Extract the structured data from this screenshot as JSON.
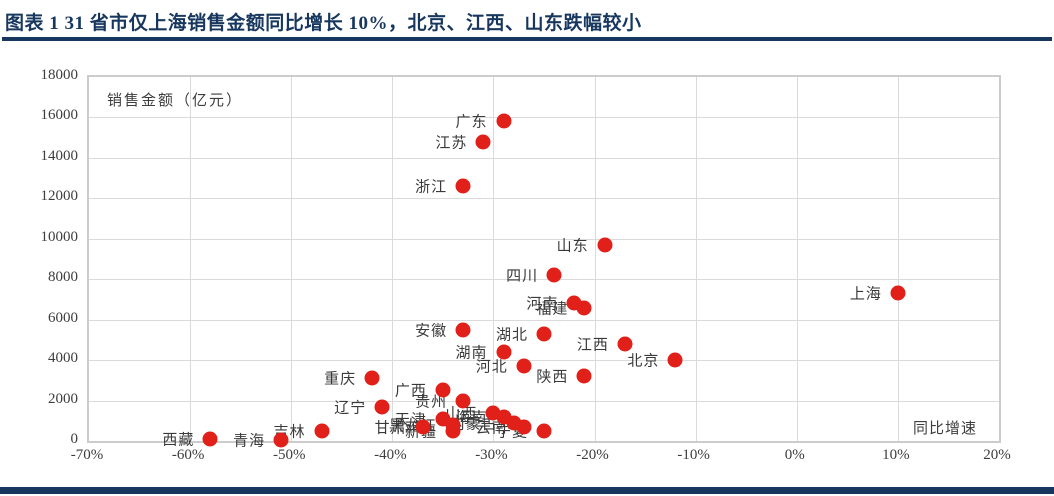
{
  "title": {
    "text": "图表 1  31 省市仅上海销售金额同比增长 10%，北京、江西、山东跌幅较小"
  },
  "colors": {
    "accent_navy": "#17375e",
    "point_red": "#e2201a",
    "grid_gray": "#dadada",
    "text_gray": "#3d3d3d"
  },
  "chart_data": {
    "type": "scatter",
    "title": "",
    "xlabel": "同比增速",
    "ylabel": "销售金额（亿元）",
    "xlim": [
      -70,
      20
    ],
    "ylim": [
      0,
      18000
    ],
    "grid": true,
    "x_tick_labels": [
      "-70%",
      "-60%",
      "-50%",
      "-40%",
      "-30%",
      "-20%",
      "-10%",
      "0%",
      "10%",
      "20%"
    ],
    "y_tick_labels": [
      "0",
      "2000",
      "4000",
      "6000",
      "8000",
      "10000",
      "12000",
      "14000",
      "16000",
      "18000"
    ],
    "x_unit": "percent_yoy_growth",
    "y_unit": "sales_amount_100M_yuan",
    "points": [
      {
        "name": "西藏",
        "x": -58,
        "y": 100
      },
      {
        "name": "青海",
        "x": -51,
        "y": 50
      },
      {
        "name": "吉林",
        "x": -47,
        "y": 500
      },
      {
        "name": "重庆",
        "x": -42,
        "y": 3100
      },
      {
        "name": "辽宁",
        "x": -41,
        "y": 1700
      },
      {
        "name": "甘肃",
        "x": -37,
        "y": 700
      },
      {
        "name": "广西",
        "x": -35,
        "y": 2500
      },
      {
        "name": "天津",
        "x": -35,
        "y": 1100
      },
      {
        "name": "黑龙江",
        "x": -34,
        "y": 800
      },
      {
        "name": "新疆",
        "x": -34,
        "y": 500
      },
      {
        "name": "浙江",
        "x": -33,
        "y": 12600
      },
      {
        "name": "安徽",
        "x": -33,
        "y": 5500
      },
      {
        "name": "贵州",
        "x": -33,
        "y": 2000
      },
      {
        "name": "江苏",
        "x": -31,
        "y": 14800
      },
      {
        "name": "山西",
        "x": -30,
        "y": 1400
      },
      {
        "name": "广东",
        "x": -29,
        "y": 15800
      },
      {
        "name": "湖南",
        "x": -29,
        "y": 4400
      },
      {
        "name": "海南",
        "x": -29,
        "y": 1200
      },
      {
        "name": "内蒙古",
        "x": -28,
        "y": 900
      },
      {
        "name": "河北",
        "x": -27,
        "y": 3700
      },
      {
        "name": "云南",
        "x": -27,
        "y": 700
      },
      {
        "name": "湖北",
        "x": -25,
        "y": 5300
      },
      {
        "name": "宁夏",
        "x": -25,
        "y": 500
      },
      {
        "name": "四川",
        "x": -24,
        "y": 8200
      },
      {
        "name": "河南",
        "x": -22,
        "y": 6800
      },
      {
        "name": "福建",
        "x": -21,
        "y": 6600
      },
      {
        "name": "陕西",
        "x": -21,
        "y": 3200
      },
      {
        "name": "山东",
        "x": -19,
        "y": 9700
      },
      {
        "name": "江西",
        "x": -17,
        "y": 4800
      },
      {
        "name": "北京",
        "x": -12,
        "y": 4000
      },
      {
        "name": "上海",
        "x": 10,
        "y": 7300
      }
    ]
  }
}
